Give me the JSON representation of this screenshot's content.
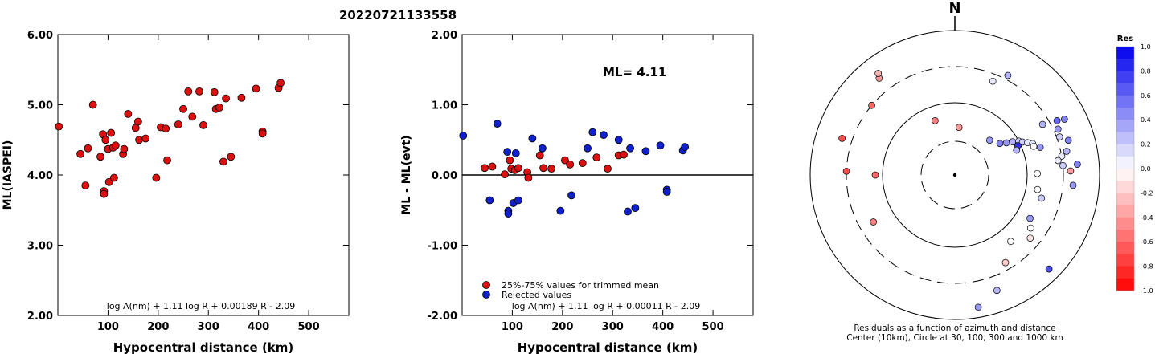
{
  "page_title": "20220721133558",
  "chart_data": [
    {
      "type": "scatter",
      "xlabel": "Hypocentral distance (km)",
      "ylabel": "ML(IASPEI)",
      "xlim": [
        0,
        580
      ],
      "ylim": [
        2.0,
        6.0
      ],
      "x_ticks": [
        "100",
        "200",
        "300",
        "400",
        "500"
      ],
      "y_ticks": [
        "2.00",
        "3.00",
        "4.00",
        "5.00",
        "6.00"
      ],
      "formula": "log A(nm) + 1.11 log R + 0.00189 R - 2.09",
      "colors": {
        "point": "#dd1010"
      },
      "points": [
        [
          2,
          4.69
        ],
        [
          45,
          4.3
        ],
        [
          55,
          3.85
        ],
        [
          60,
          4.38
        ],
        [
          70,
          5.0
        ],
        [
          85,
          4.26
        ],
        [
          90,
          4.58
        ],
        [
          92,
          3.77
        ],
        [
          92,
          3.73
        ],
        [
          95,
          4.5
        ],
        [
          100,
          4.37
        ],
        [
          102,
          3.9
        ],
        [
          106,
          4.6
        ],
        [
          110,
          4.39
        ],
        [
          112,
          3.96
        ],
        [
          115,
          4.42
        ],
        [
          130,
          4.3
        ],
        [
          132,
          4.37
        ],
        [
          140,
          4.87
        ],
        [
          155,
          4.67
        ],
        [
          160,
          4.76
        ],
        [
          162,
          4.5
        ],
        [
          175,
          4.52
        ],
        [
          196,
          3.96
        ],
        [
          205,
          4.68
        ],
        [
          215,
          4.66
        ],
        [
          218,
          4.21
        ],
        [
          240,
          4.72
        ],
        [
          250,
          4.94
        ],
        [
          260,
          5.19
        ],
        [
          268,
          4.83
        ],
        [
          282,
          5.19
        ],
        [
          290,
          4.71
        ],
        [
          312,
          5.18
        ],
        [
          315,
          4.94
        ],
        [
          322,
          4.96
        ],
        [
          330,
          4.19
        ],
        [
          335,
          5.09
        ],
        [
          345,
          4.26
        ],
        [
          366,
          5.1
        ],
        [
          395,
          5.23
        ],
        [
          408,
          4.62
        ],
        [
          408,
          4.59
        ],
        [
          440,
          5.24
        ],
        [
          444,
          5.31
        ]
      ]
    },
    {
      "type": "scatter",
      "xlabel": "Hypocentral distance (km)",
      "ylabel": "ML - ML(evt)",
      "xlim": [
        0,
        580
      ],
      "ylim": [
        -2.0,
        2.0
      ],
      "x_ticks": [
        "100",
        "200",
        "300",
        "400",
        "500"
      ],
      "y_ticks": [
        "-2.00",
        "-1.00",
        "0.00",
        "1.00",
        "2.00"
      ],
      "annotation": "ML=  4.11",
      "formula": "log A(nm) + 1.11 log R + 0.00011 R - 2.09",
      "legend": [
        "25%-75% values for trimmed mean",
        "Rejected values"
      ],
      "colors": {
        "trimmed": "#dd1010",
        "rejected": "#1020cc"
      },
      "series": [
        {
          "name": "25%-75% values for trimmed mean",
          "points": [
            [
              45,
              0.1
            ],
            [
              60,
              0.12
            ],
            [
              85,
              0.01
            ],
            [
              95,
              0.21
            ],
            [
              98,
              0.09
            ],
            [
              105,
              0.07
            ],
            [
              112,
              0.1
            ],
            [
              130,
              0.04
            ],
            [
              132,
              -0.04
            ],
            [
              155,
              0.28
            ],
            [
              162,
              0.1
            ],
            [
              178,
              0.09
            ],
            [
              205,
              0.21
            ],
            [
              215,
              0.15
            ],
            [
              240,
              0.17
            ],
            [
              268,
              0.25
            ],
            [
              290,
              0.09
            ],
            [
              312,
              0.28
            ],
            [
              322,
              0.29
            ]
          ]
        },
        {
          "name": "Rejected values",
          "points": [
            [
              2,
              0.56
            ],
            [
              55,
              -0.36
            ],
            [
              70,
              0.73
            ],
            [
              90,
              0.33
            ],
            [
              92,
              -0.51
            ],
            [
              92,
              -0.55
            ],
            [
              102,
              -0.4
            ],
            [
              107,
              0.31
            ],
            [
              112,
              -0.36
            ],
            [
              140,
              0.52
            ],
            [
              160,
              0.38
            ],
            [
              196,
              -0.51
            ],
            [
              218,
              -0.29
            ],
            [
              250,
              0.38
            ],
            [
              260,
              0.61
            ],
            [
              282,
              0.57
            ],
            [
              312,
              0.5
            ],
            [
              330,
              -0.52
            ],
            [
              335,
              0.38
            ],
            [
              345,
              -0.47
            ],
            [
              366,
              0.34
            ],
            [
              395,
              0.42
            ],
            [
              408,
              -0.21
            ],
            [
              408,
              -0.24
            ],
            [
              440,
              0.35
            ],
            [
              444,
              0.4
            ]
          ]
        }
      ]
    },
    {
      "type": "scatter",
      "subtype": "polar",
      "north_label": "N",
      "caption_line1": "Residuals as a function of azimuth and distance",
      "caption_line2": "Center (10km), Circle at 30, 100, 300 and 1000 km",
      "colorbar_title": "Res",
      "colorbar_ticks": [
        "1.0",
        "0.8",
        "0.6",
        "0.4",
        "0.2",
        "0.0",
        "-0.2",
        "-0.4",
        "-0.6",
        "-0.8",
        "-1.0"
      ],
      "colors": {
        "positive": "#0000ee",
        "negative": "#ff0000",
        "zero": "#ffffff"
      },
      "points": [
        [
          -38,
          85,
          -0.4
        ],
        [
          -37,
          88,
          -0.3
        ],
        [
          -50,
          75,
          -0.6
        ],
        [
          -20,
          40,
          -0.5
        ],
        [
          5,
          33,
          -0.4
        ],
        [
          -72,
          82,
          -0.7
        ],
        [
          -88,
          75,
          -0.7
        ],
        [
          -90,
          55,
          -0.6
        ],
        [
          -120,
          65,
          -0.5
        ],
        [
          22,
          70,
          0.1
        ],
        [
          28,
          78,
          0.3
        ],
        [
          45,
          34,
          0.4
        ],
        [
          55,
          38,
          0.5
        ],
        [
          58,
          42,
          0.4
        ],
        [
          60,
          46,
          0.3
        ],
        [
          62,
          50,
          0.2
        ],
        [
          64,
          52,
          0.2
        ],
        [
          66,
          55,
          0.1
        ],
        [
          68,
          58,
          0.1
        ],
        [
          70,
          58,
          0.0
        ],
        [
          65,
          48,
          0.8
        ],
        [
          68,
          46,
          0.3
        ],
        [
          72,
          62,
          0.4
        ],
        [
          60,
          70,
          0.3
        ],
        [
          62,
          80,
          0.6
        ],
        [
          63,
          85,
          0.5
        ],
        [
          66,
          78,
          0.4
        ],
        [
          70,
          77,
          0.2
        ],
        [
          73,
          82,
          0.5
        ],
        [
          78,
          79,
          0.3
        ],
        [
          80,
          75,
          0.1
        ],
        [
          82,
          72,
          0.1
        ],
        [
          85,
          75,
          0.2
        ],
        [
          88,
          80,
          -0.4
        ],
        [
          85,
          85,
          0.5
        ],
        [
          89,
          57,
          0.0
        ],
        [
          100,
          58,
          0.0
        ],
        [
          105,
          62,
          0.2
        ],
        [
          95,
          82,
          0.4
        ],
        [
          120,
          60,
          0.4
        ],
        [
          125,
          64,
          0.0
        ],
        [
          130,
          68,
          -0.1
        ],
        [
          140,
          60,
          0.0
        ],
        [
          150,
          70,
          -0.2
        ],
        [
          135,
          92,
          0.7
        ],
        [
          160,
          85,
          0.3
        ],
        [
          170,
          93,
          0.4
        ]
      ]
    }
  ]
}
